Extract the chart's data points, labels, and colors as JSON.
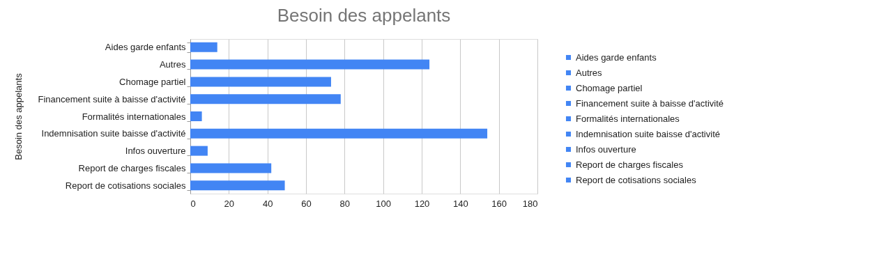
{
  "chart_data": {
    "type": "bar",
    "orientation": "horizontal",
    "title": "Besoin des appelants",
    "ylabel": "Besoin des appelants",
    "categories": [
      "Aides garde enfants",
      "Autres",
      "Chomage partiel",
      "Financement suite à baisse d'activité",
      "Formalités internationales",
      "Indemnisation suite baisse d'activité",
      "Infos ouverture",
      "Report de charges fiscales",
      "Report de cotisations sociales"
    ],
    "series": [
      {
        "name": "Aides garde enfants",
        "color": "#4285f4",
        "values": [
          14,
          null,
          null,
          null,
          null,
          null,
          null,
          null,
          null
        ]
      },
      {
        "name": "Autres",
        "color": "#4285f4",
        "values": [
          null,
          124,
          null,
          null,
          null,
          null,
          null,
          null,
          null
        ]
      },
      {
        "name": "Chomage partiel",
        "color": "#4285f4",
        "values": [
          null,
          null,
          73,
          null,
          null,
          null,
          null,
          null,
          null
        ]
      },
      {
        "name": "Financement suite à baisse d'activité",
        "color": "#4285f4",
        "values": [
          null,
          null,
          null,
          78,
          null,
          null,
          null,
          null,
          null
        ]
      },
      {
        "name": "Formalités internationales",
        "color": "#4285f4",
        "values": [
          null,
          null,
          null,
          null,
          6,
          null,
          null,
          null,
          null
        ]
      },
      {
        "name": "Indemnisation suite baisse d'activité",
        "color": "#4285f4",
        "values": [
          null,
          null,
          null,
          null,
          null,
          154,
          null,
          null,
          null
        ]
      },
      {
        "name": "Infos ouverture",
        "color": "#4285f4",
        "values": [
          null,
          null,
          null,
          null,
          null,
          null,
          9,
          null,
          null
        ]
      },
      {
        "name": "Report de charges fiscales",
        "color": "#4285f4",
        "values": [
          null,
          null,
          null,
          null,
          null,
          null,
          null,
          42,
          null
        ]
      },
      {
        "name": "Report de cotisations sociales",
        "color": "#4285f4",
        "values": [
          null,
          null,
          null,
          null,
          null,
          null,
          null,
          null,
          49
        ]
      }
    ],
    "xlim": [
      0,
      180
    ],
    "xticks": [
      0,
      20,
      40,
      60,
      80,
      100,
      120,
      140,
      160,
      180
    ],
    "grid": "x",
    "legend": "right"
  }
}
